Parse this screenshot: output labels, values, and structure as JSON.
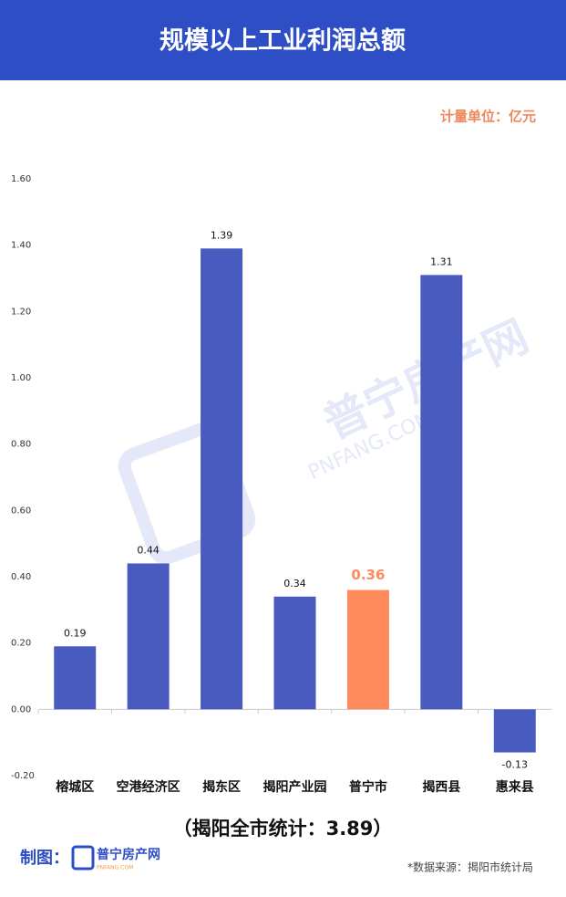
{
  "header": {
    "title": "规模以上工业利润总额"
  },
  "chart_data": {
    "type": "bar",
    "unit": "计量单位：亿元",
    "categories": [
      "榕城区",
      "空港经济区",
      "揭东区",
      "揭阳产业园",
      "普宁市",
      "揭西县",
      "惠来县"
    ],
    "values": [
      0.19,
      0.44,
      1.39,
      0.34,
      0.36,
      1.31,
      -0.13
    ],
    "color": "#4a5bbf",
    "colors": [
      "#4a5bbf",
      "#4a5bbf",
      "#4a5bbf",
      "#4a5bbf",
      "#ff8a5b",
      "#4a5bbf",
      "#4a5bbf"
    ],
    "ylim": [
      -0.2,
      1.6
    ],
    "yticks": [
      {
        "value": -0.2,
        "label": "-0.20"
      },
      {
        "value": 0,
        "label": "0.00"
      },
      {
        "value": 0.2,
        "label": "0.20"
      },
      {
        "value": 0.4,
        "label": "0.40"
      },
      {
        "value": 0.6,
        "label": "0.60"
      },
      {
        "value": 0.8,
        "label": "0.80"
      },
      {
        "value": 1,
        "label": "1.00"
      },
      {
        "value": 1.2,
        "label": "1.20"
      },
      {
        "value": 1.4,
        "label": "1.40"
      },
      {
        "value": 1.6,
        "label": "1.60"
      }
    ],
    "grid": false
  },
  "footer": {
    "total": "（揭阳全市统计：3.89）",
    "maker": "制图：",
    "logo_text": "普宁房产网",
    "logo_sub": "PNFANG.COM",
    "source": "*数据来源：揭阳市统计局"
  },
  "watermark": {
    "text": "普宁房产网",
    "sub": "PNFANG.COM"
  }
}
